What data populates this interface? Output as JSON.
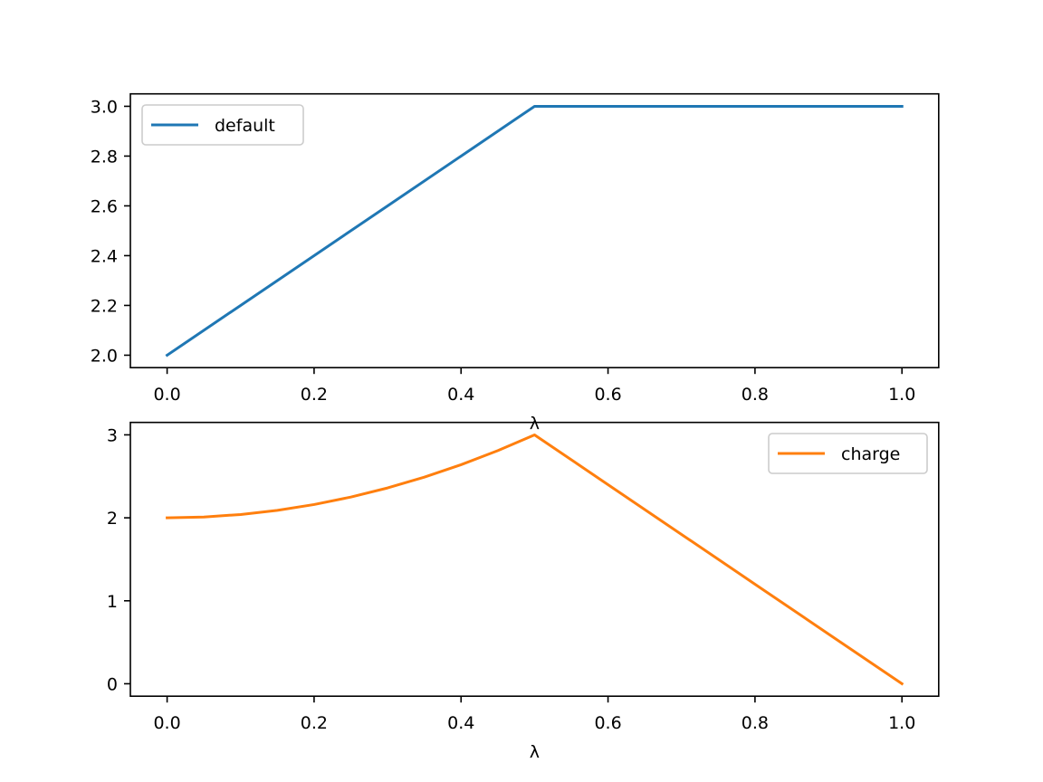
{
  "chart_data": [
    {
      "type": "line",
      "title": "",
      "xlabel": "λ",
      "ylabel": "",
      "xlim": [
        -0.05,
        1.05
      ],
      "ylim": [
        1.95,
        3.05
      ],
      "xticks": [
        0.0,
        0.2,
        0.4,
        0.6,
        0.8,
        1.0
      ],
      "xtick_labels": [
        "0.0",
        "0.2",
        "0.4",
        "0.6",
        "0.8",
        "1.0"
      ],
      "yticks": [
        2.0,
        2.2,
        2.4,
        2.6,
        2.8,
        3.0
      ],
      "ytick_labels": [
        "2.0",
        "2.2",
        "2.4",
        "2.6",
        "2.8",
        "3.0"
      ],
      "grid": false,
      "legend_position": "upper-left",
      "series": [
        {
          "name": "default",
          "color": "#1f77b4",
          "x": [
            0.0,
            0.1,
            0.2,
            0.3,
            0.4,
            0.5,
            0.6,
            0.7,
            0.8,
            0.9,
            1.0
          ],
          "y": [
            2.0,
            2.2,
            2.4,
            2.6,
            2.8,
            3.0,
            3.0,
            3.0,
            3.0,
            3.0,
            3.0
          ]
        }
      ]
    },
    {
      "type": "line",
      "title": "",
      "xlabel": "λ",
      "ylabel": "",
      "xlim": [
        -0.05,
        1.05
      ],
      "ylim": [
        -0.15,
        3.15
      ],
      "xticks": [
        0.0,
        0.2,
        0.4,
        0.6,
        0.8,
        1.0
      ],
      "xtick_labels": [
        "0.0",
        "0.2",
        "0.4",
        "0.6",
        "0.8",
        "1.0"
      ],
      "yticks": [
        0,
        1,
        2,
        3
      ],
      "ytick_labels": [
        "0",
        "1",
        "2",
        "3"
      ],
      "grid": false,
      "legend_position": "upper-right",
      "series": [
        {
          "name": "charge",
          "color": "#ff7f0e",
          "x": [
            0.0,
            0.05,
            0.1,
            0.15,
            0.2,
            0.25,
            0.3,
            0.35,
            0.4,
            0.45,
            0.5,
            0.6,
            0.7,
            0.8,
            0.9,
            1.0
          ],
          "y": [
            2.0,
            2.01,
            2.04,
            2.09,
            2.16,
            2.25,
            2.36,
            2.49,
            2.64,
            2.81,
            3.0,
            2.4,
            1.8,
            1.2,
            0.6,
            0.0
          ]
        }
      ]
    }
  ]
}
